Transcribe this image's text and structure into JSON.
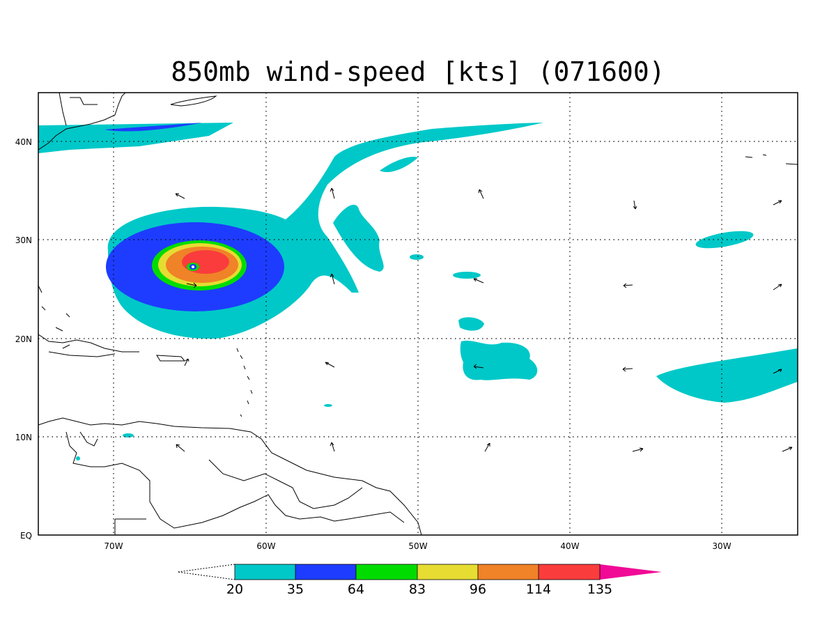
{
  "title": "850mb wind-speed [kts] (071600)",
  "axes": {
    "x_ticks": [
      "70W",
      "60W",
      "50W",
      "40W",
      "30W"
    ],
    "y_ticks": [
      "40N",
      "30N",
      "20N",
      "10N",
      "EQ"
    ]
  },
  "legend": {
    "labels": [
      "20",
      "35",
      "64",
      "83",
      "96",
      "114",
      "135"
    ],
    "colors": [
      "#00c8c8",
      "#1e3cff",
      "#00dc00",
      "#e6dc32",
      "#f08228",
      "#fa3c3c",
      "#f00a96"
    ]
  },
  "chart_data": {
    "type": "map",
    "title": "850mb wind-speed [kts] (071600)",
    "lon_range": [
      -75,
      -25
    ],
    "lat_range": [
      0,
      45
    ],
    "grid": true,
    "contour_levels_kts": [
      20,
      35,
      64,
      83,
      96,
      114,
      135
    ],
    "features": "hurricane wind field centered near 27N 65W with max winds 114-135 kts"
  }
}
